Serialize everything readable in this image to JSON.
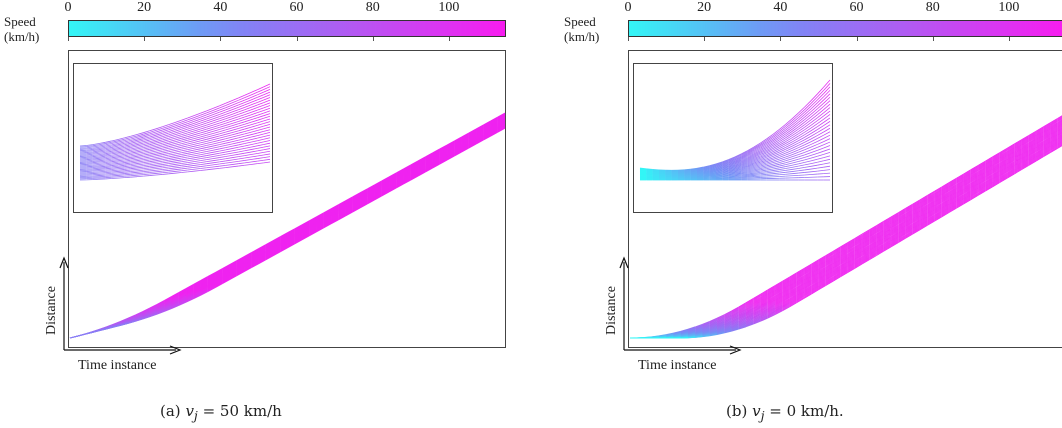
{
  "colorbar": {
    "title_line1": "Speed",
    "title_line2": "(km/h)",
    "ticks": [
      "0",
      "20",
      "40",
      "60",
      "80",
      "100"
    ],
    "tick_values": [
      0,
      20,
      40,
      60,
      80,
      100
    ],
    "range": [
      0,
      115
    ],
    "color_min": "#33f6f6",
    "color_max": "#f81cf0"
  },
  "axes": {
    "xlabel": "Time instance",
    "ylabel": "Distance"
  },
  "chart_data": [
    {
      "type": "line",
      "caption_prefix": "(a)",
      "caption_var": "v",
      "caption_sub": "j",
      "caption_rest": " = 50 km/h",
      "xlabel": "Time instance",
      "ylabel": "Distance",
      "initial_speed_kmh": 50,
      "final_speed_kmh": 110,
      "vehicle_count": 30,
      "has_inset": true
    },
    {
      "type": "line",
      "caption_prefix": "(b)",
      "caption_var": "v",
      "caption_sub": "j",
      "caption_rest": " = 0 km/h.",
      "xlabel": "Time instance",
      "ylabel": "Distance",
      "initial_speed_kmh": 0,
      "final_speed_kmh": 110,
      "vehicle_count": 30,
      "has_inset": true
    }
  ]
}
